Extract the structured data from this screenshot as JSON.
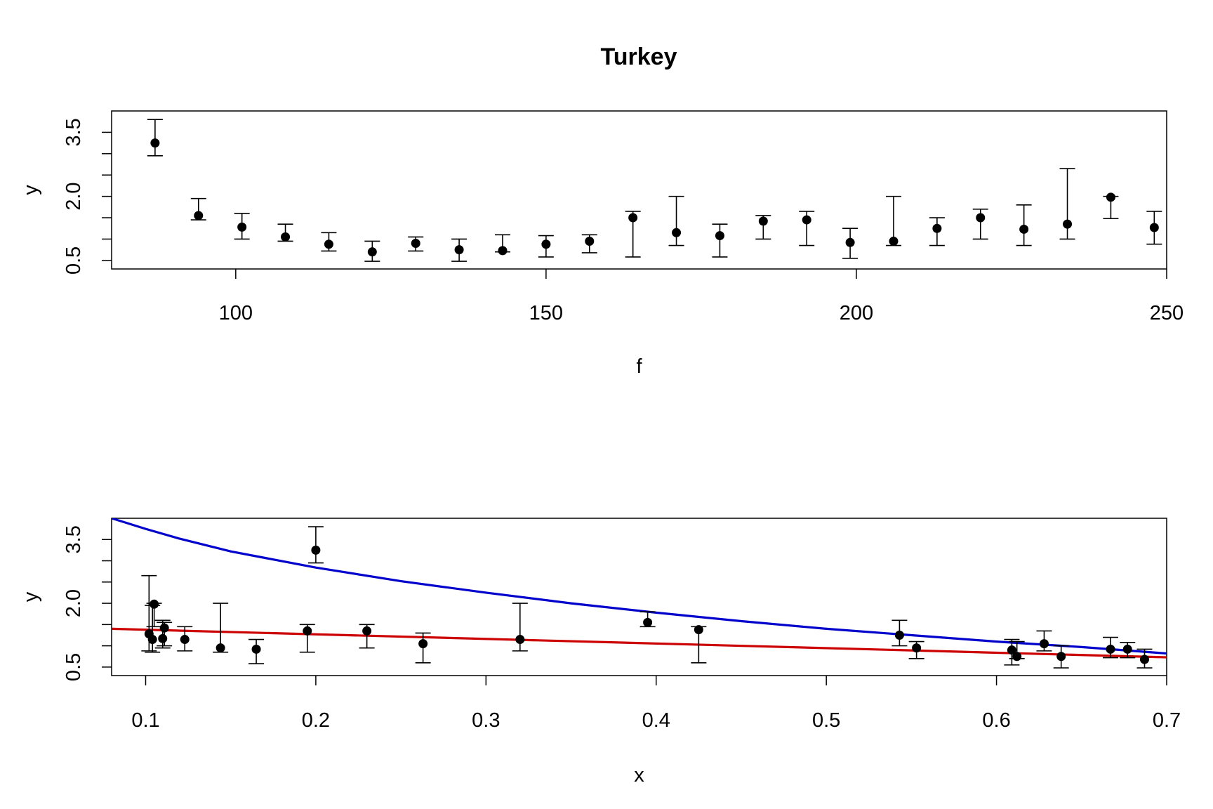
{
  "title": "Turkey",
  "chart_data": [
    {
      "type": "scatter",
      "title": "Turkey",
      "xlabel": "f",
      "ylabel": "y",
      "xlim": [
        80,
        250
      ],
      "ylim": [
        0.3,
        4.0
      ],
      "xticks": [
        100,
        150,
        200,
        250
      ],
      "yticks": [
        0.5,
        1.0,
        1.5,
        2.0,
        2.5,
        3.0,
        3.5
      ],
      "yticklabels": [
        "0.5",
        "",
        "",
        "2.0",
        "",
        "",
        "3.5"
      ],
      "points": [
        {
          "x": 87,
          "y": 3.25,
          "lo": 2.95,
          "hi": 3.8
        },
        {
          "x": 94,
          "y": 1.55,
          "lo": 1.45,
          "hi": 1.95
        },
        {
          "x": 101,
          "y": 1.28,
          "lo": 1.0,
          "hi": 1.6
        },
        {
          "x": 108,
          "y": 1.05,
          "lo": 0.95,
          "hi": 1.35
        },
        {
          "x": 115,
          "y": 0.88,
          "lo": 0.72,
          "hi": 1.15
        },
        {
          "x": 122,
          "y": 0.7,
          "lo": 0.48,
          "hi": 0.95
        },
        {
          "x": 129,
          "y": 0.9,
          "lo": 0.72,
          "hi": 1.05
        },
        {
          "x": 136,
          "y": 0.75,
          "lo": 0.48,
          "hi": 1.0
        },
        {
          "x": 143,
          "y": 0.73,
          "lo": 0.7,
          "hi": 1.1
        },
        {
          "x": 150,
          "y": 0.88,
          "lo": 0.58,
          "hi": 1.08
        },
        {
          "x": 157,
          "y": 0.95,
          "lo": 0.68,
          "hi": 1.1
        },
        {
          "x": 164,
          "y": 1.5,
          "lo": 0.58,
          "hi": 1.65
        },
        {
          "x": 171,
          "y": 1.15,
          "lo": 0.85,
          "hi": 2.0
        },
        {
          "x": 178,
          "y": 1.08,
          "lo": 0.58,
          "hi": 1.35
        },
        {
          "x": 185,
          "y": 1.42,
          "lo": 1.0,
          "hi": 1.55
        },
        {
          "x": 192,
          "y": 1.45,
          "lo": 0.85,
          "hi": 1.65
        },
        {
          "x": 199,
          "y": 0.92,
          "lo": 0.55,
          "hi": 1.25
        },
        {
          "x": 206,
          "y": 0.95,
          "lo": 0.85,
          "hi": 2.0
        },
        {
          "x": 213,
          "y": 1.25,
          "lo": 0.85,
          "hi": 1.5
        },
        {
          "x": 220,
          "y": 1.5,
          "lo": 1.0,
          "hi": 1.7
        },
        {
          "x": 227,
          "y": 1.23,
          "lo": 0.85,
          "hi": 1.8
        },
        {
          "x": 234,
          "y": 1.35,
          "lo": 1.0,
          "hi": 2.65
        },
        {
          "x": 241,
          "y": 1.98,
          "lo": 1.48,
          "hi": 2.0
        },
        {
          "x": 248,
          "y": 1.27,
          "lo": 0.88,
          "hi": 1.65
        }
      ]
    },
    {
      "type": "scatter",
      "xlabel": "x",
      "ylabel": "y",
      "xlim": [
        0.08,
        0.7
      ],
      "ylim": [
        0.3,
        4.0
      ],
      "xticks": [
        0.1,
        0.2,
        0.3,
        0.4,
        0.5,
        0.6,
        0.7
      ],
      "yticks": [
        0.5,
        1.0,
        1.5,
        2.0,
        2.5,
        3.0,
        3.5
      ],
      "yticklabels": [
        "0.5",
        "",
        "",
        "2.0",
        "",
        "",
        "3.5"
      ],
      "points": [
        {
          "x": 0.102,
          "y": 1.28,
          "lo": 0.88,
          "hi": 2.65
        },
        {
          "x": 0.104,
          "y": 1.15,
          "lo": 0.85,
          "hi": 1.95
        },
        {
          "x": 0.105,
          "y": 1.98,
          "lo": 1.45,
          "hi": 2.0
        },
        {
          "x": 0.11,
          "y": 1.17,
          "lo": 0.95,
          "hi": 1.6
        },
        {
          "x": 0.111,
          "y": 1.42,
          "lo": 1.0,
          "hi": 1.55
        },
        {
          "x": 0.123,
          "y": 1.15,
          "lo": 0.88,
          "hi": 1.45
        },
        {
          "x": 0.144,
          "y": 0.95,
          "lo": 0.85,
          "hi": 2.0
        },
        {
          "x": 0.165,
          "y": 0.92,
          "lo": 0.58,
          "hi": 1.15
        },
        {
          "x": 0.195,
          "y": 1.35,
          "lo": 0.85,
          "hi": 1.5
        },
        {
          "x": 0.2,
          "y": 3.25,
          "lo": 2.95,
          "hi": 3.8
        },
        {
          "x": 0.23,
          "y": 1.35,
          "lo": 0.95,
          "hi": 1.5
        },
        {
          "x": 0.263,
          "y": 1.05,
          "lo": 0.6,
          "hi": 1.3
        },
        {
          "x": 0.32,
          "y": 1.15,
          "lo": 0.88,
          "hi": 2.0
        },
        {
          "x": 0.395,
          "y": 1.55,
          "lo": 1.45,
          "hi": 1.8
        },
        {
          "x": 0.425,
          "y": 1.38,
          "lo": 0.6,
          "hi": 1.45
        },
        {
          "x": 0.543,
          "y": 1.25,
          "lo": 1.0,
          "hi": 1.6
        },
        {
          "x": 0.553,
          "y": 0.95,
          "lo": 0.7,
          "hi": 1.1
        },
        {
          "x": 0.609,
          "y": 0.9,
          "lo": 0.55,
          "hi": 1.15
        },
        {
          "x": 0.612,
          "y": 0.75,
          "lo": 0.7,
          "hi": 1.1
        },
        {
          "x": 0.628,
          "y": 1.05,
          "lo": 0.88,
          "hi": 1.35
        },
        {
          "x": 0.638,
          "y": 0.75,
          "lo": 0.48,
          "hi": 1.0
        },
        {
          "x": 0.667,
          "y": 0.92,
          "lo": 0.72,
          "hi": 1.2
        },
        {
          "x": 0.677,
          "y": 0.92,
          "lo": 0.72,
          "hi": 1.08
        },
        {
          "x": 0.687,
          "y": 0.68,
          "lo": 0.48,
          "hi": 0.92
        }
      ],
      "series": [
        {
          "color": "#0000cc",
          "x": [
            0.08,
            0.1,
            0.12,
            0.15,
            0.2,
            0.25,
            0.3,
            0.35,
            0.4,
            0.45,
            0.5,
            0.55,
            0.6,
            0.65,
            0.7
          ],
          "y": [
            4.0,
            3.75,
            3.52,
            3.22,
            2.84,
            2.52,
            2.25,
            2.0,
            1.78,
            1.58,
            1.4,
            1.25,
            1.1,
            0.97,
            0.82
          ]
        },
        {
          "color": "#cc0000",
          "x": [
            0.08,
            0.7
          ],
          "y": [
            1.4,
            0.73
          ]
        }
      ]
    }
  ]
}
